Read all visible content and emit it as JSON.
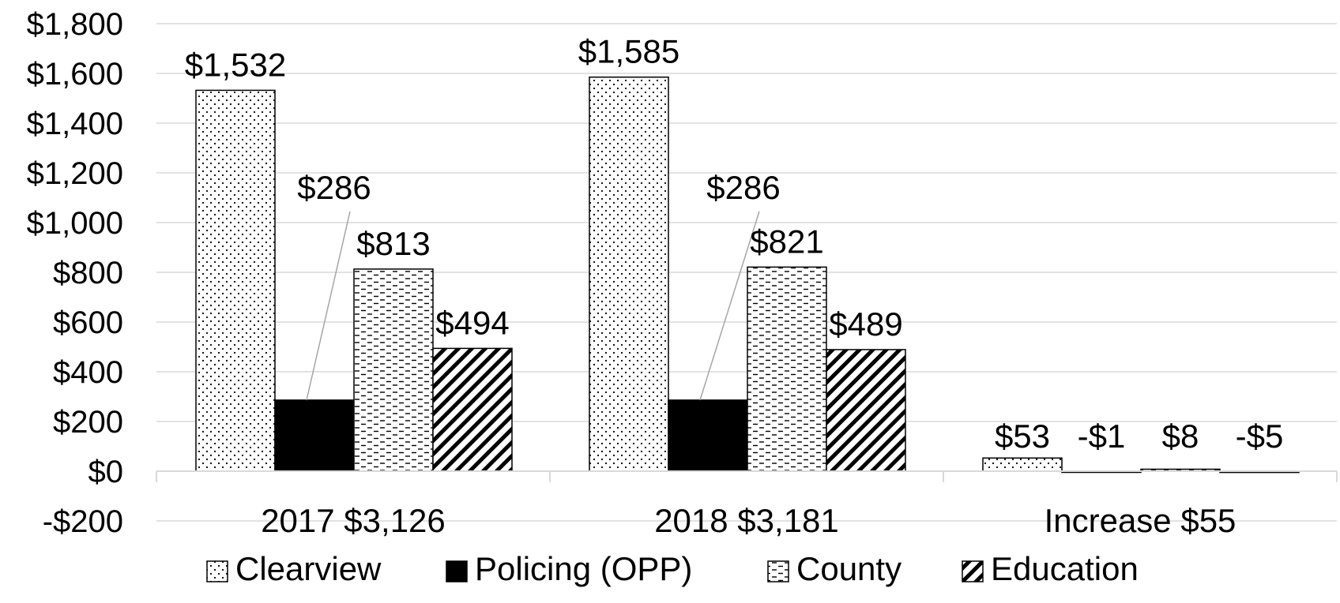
{
  "chart_data": {
    "type": "bar",
    "title": "",
    "categories": [
      "2017 $3,126",
      "2018 $3,181",
      "Increase $55"
    ],
    "series": [
      {
        "name": "Clearview",
        "values": [
          1532,
          1585,
          53
        ],
        "labels": [
          "$1,532",
          "$1,585",
          "$53"
        ],
        "pattern": "dots"
      },
      {
        "name": "Policing (OPP)",
        "values": [
          286,
          286,
          -1
        ],
        "labels": [
          "$286",
          "$286",
          "-$1"
        ],
        "pattern": "solid"
      },
      {
        "name": "County",
        "values": [
          813,
          821,
          8
        ],
        "labels": [
          "$813",
          "$821",
          "$8"
        ],
        "pattern": "dashes"
      },
      {
        "name": "Education",
        "values": [
          494,
          489,
          -5
        ],
        "labels": [
          "$494",
          "$489",
          "-$5"
        ],
        "pattern": "diagonal"
      }
    ],
    "y_ticks": [
      {
        "value": 1800,
        "label": "$1,800"
      },
      {
        "value": 1600,
        "label": "$1,600"
      },
      {
        "value": 1400,
        "label": "$1,400"
      },
      {
        "value": 1200,
        "label": "$1,200"
      },
      {
        "value": 1000,
        "label": "$1,000"
      },
      {
        "value": 800,
        "label": "$800"
      },
      {
        "value": 600,
        "label": "$600"
      },
      {
        "value": 400,
        "label": "$400"
      },
      {
        "value": 200,
        "label": "$200"
      },
      {
        "value": 0,
        "label": "$0"
      },
      {
        "value": -200,
        "label": "-$200"
      }
    ],
    "ylim": [
      -200,
      1800
    ],
    "grid": true,
    "legend_position": "bottom",
    "colors": {
      "bar_fill": "#ffffff",
      "bar_stroke": "#000000",
      "grid": "#d9d9d9",
      "solid": "#000000"
    }
  }
}
